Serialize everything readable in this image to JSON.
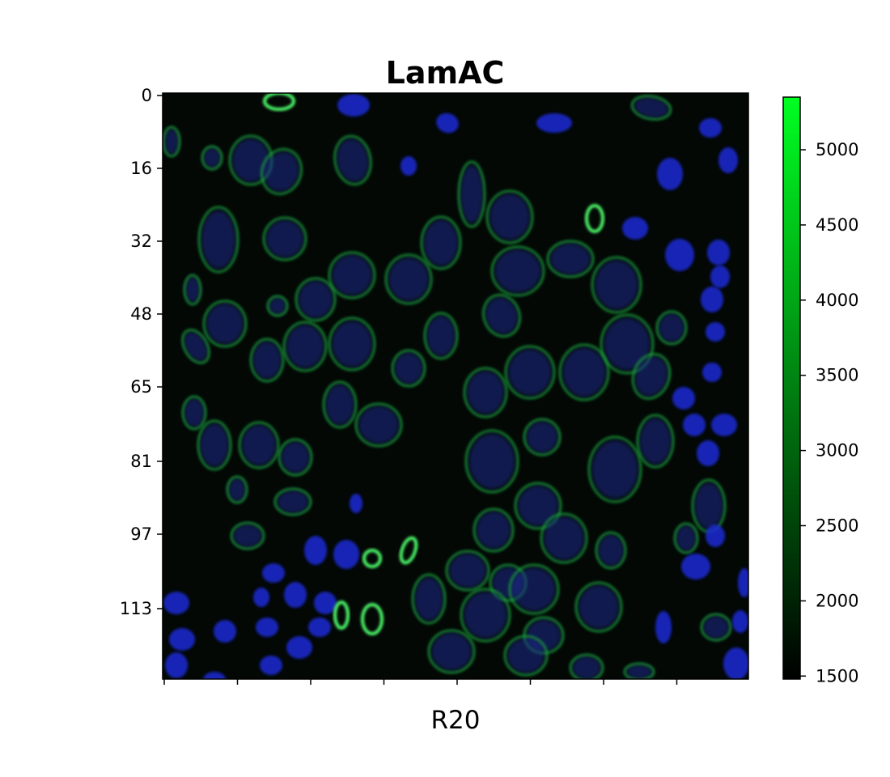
{
  "title": "LamAC",
  "xlabel": "R20",
  "y_ticks": [
    "0",
    "16",
    "32",
    "48",
    "65",
    "81",
    "97",
    "113"
  ],
  "x_tick_count": 8,
  "colorbar": {
    "ticks": [
      "1500",
      "2000",
      "2500",
      "3000",
      "3500",
      "4000",
      "4500",
      "5000"
    ],
    "tick_values": [
      1500,
      2000,
      2500,
      3000,
      3500,
      4000,
      4500,
      5000
    ],
    "range": [
      1480,
      5350
    ],
    "colormap": [
      "#000000",
      "#00ff22"
    ]
  },
  "image": {
    "channels": {
      "membrane": "#1fa83a",
      "nuclei": "#1a2bd6"
    },
    "background": "#030805"
  }
}
